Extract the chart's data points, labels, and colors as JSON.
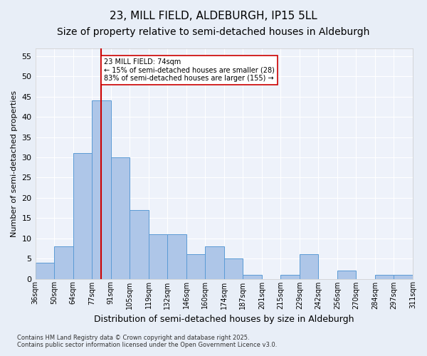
{
  "title1": "23, MILL FIELD, ALDEBURGH, IP15 5LL",
  "title2": "Size of property relative to semi-detached houses in Aldeburgh",
  "xlabel": "Distribution of semi-detached houses by size in Aldeburgh",
  "ylabel": "Number of semi-detached properties",
  "categories": [
    "36sqm",
    "50sqm",
    "64sqm",
    "77sqm",
    "91sqm",
    "105sqm",
    "119sqm",
    "132sqm",
    "146sqm",
    "160sqm",
    "174sqm",
    "187sqm",
    "201sqm",
    "215sqm",
    "229sqm",
    "242sqm",
    "256sqm",
    "270sqm",
    "284sqm",
    "297sqm",
    "311sqm"
  ],
  "bar_values": [
    4,
    8,
    31,
    44,
    30,
    17,
    11,
    11,
    6,
    8,
    5,
    1,
    0,
    1,
    6,
    0,
    2,
    0,
    1,
    1
  ],
  "bar_color": "#aec6e8",
  "bar_edge_color": "#5b9bd5",
  "red_line_x": 3.5,
  "annotation_title": "23 MILL FIELD: 74sqm",
  "annotation_line1": "← 15% of semi-detached houses are smaller (28)",
  "annotation_line2": "83% of semi-detached houses are larger (155) →",
  "annotation_box_color": "#ffffff",
  "annotation_box_edge": "#cc0000",
  "red_line_color": "#cc0000",
  "ylim": [
    0,
    57
  ],
  "yticks": [
    0,
    5,
    10,
    15,
    20,
    25,
    30,
    35,
    40,
    45,
    50,
    55
  ],
  "footnote1": "Contains HM Land Registry data © Crown copyright and database right 2025.",
  "footnote2": "Contains public sector information licensed under the Open Government Licence v3.0.",
  "bg_color": "#e8eef7",
  "plot_bg_color": "#eef2fa",
  "title1_fontsize": 11,
  "title2_fontsize": 10
}
